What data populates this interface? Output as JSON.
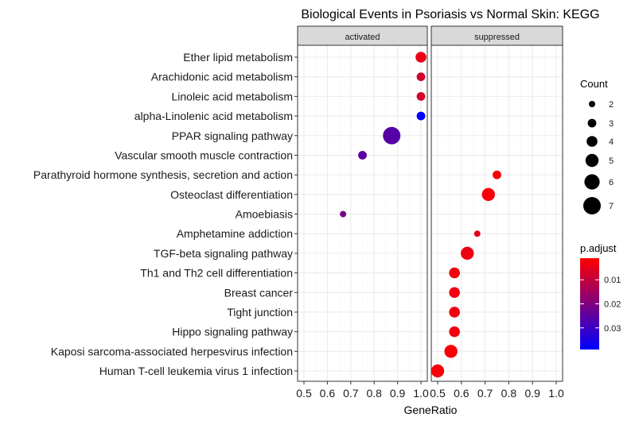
{
  "chart_data": {
    "type": "scatter",
    "title": "Biological Events in Psoriasis vs Normal Skin: KEGG",
    "xlabel": "GeneRatio",
    "ylabel": "",
    "xlim": [
      0.5,
      1.0
    ],
    "xticks": [
      "0.5",
      "0.6",
      "0.7",
      "0.8",
      "0.9",
      "1.0"
    ],
    "grid": true,
    "facets": [
      "activated",
      "suppressed"
    ],
    "categories": [
      "Ether lipid metabolism",
      "Arachidonic acid metabolism",
      "Linoleic acid metabolism",
      "alpha-Linolenic acid metabolism",
      "PPAR signaling pathway",
      "Vascular smooth muscle contraction",
      "Parathyroid hormone synthesis, secretion and action",
      "Osteoclast differentiation",
      "Amoebiasis",
      "Amphetamine addiction",
      "TGF-beta signaling pathway",
      "Th1 and Th2 cell differentiation",
      "Breast cancer",
      "Tight junction",
      "Hippo signaling pathway",
      "Kaposi sarcoma-associated herpesvirus infection",
      "Human T-cell leukemia virus 1 infection"
    ],
    "points": [
      {
        "term": "Ether lipid metabolism",
        "facet": "activated",
        "x": 1.0,
        "count": 4,
        "p_adjust": 0.004
      },
      {
        "term": "Arachidonic acid metabolism",
        "facet": "activated",
        "x": 1.0,
        "count": 3,
        "p_adjust": 0.008
      },
      {
        "term": "Linoleic acid metabolism",
        "facet": "activated",
        "x": 1.0,
        "count": 3,
        "p_adjust": 0.007
      },
      {
        "term": "alpha-Linolenic acid metabolism",
        "facet": "activated",
        "x": 1.0,
        "count": 3,
        "p_adjust": 0.039
      },
      {
        "term": "PPAR signaling pathway",
        "facet": "activated",
        "x": 0.875,
        "count": 7,
        "p_adjust": 0.026
      },
      {
        "term": "Vascular smooth muscle contraction",
        "facet": "activated",
        "x": 0.75,
        "count": 3,
        "p_adjust": 0.025
      },
      {
        "term": "Amoebiasis",
        "facet": "activated",
        "x": 0.667,
        "count": 2,
        "p_adjust": 0.021
      },
      {
        "term": "Parathyroid hormone synthesis, secretion and action",
        "facet": "suppressed",
        "x": 0.75,
        "count": 3,
        "p_adjust": 0.002
      },
      {
        "term": "Osteoclast differentiation",
        "facet": "suppressed",
        "x": 0.714,
        "count": 5,
        "p_adjust": 0.002
      },
      {
        "term": "Amphetamine addiction",
        "facet": "suppressed",
        "x": 0.667,
        "count": 2,
        "p_adjust": 0.005
      },
      {
        "term": "TGF-beta signaling pathway",
        "facet": "suppressed",
        "x": 0.625,
        "count": 5,
        "p_adjust": 0.004
      },
      {
        "term": "Th1 and Th2 cell differentiation",
        "facet": "suppressed",
        "x": 0.571,
        "count": 4,
        "p_adjust": 0.003
      },
      {
        "term": "Breast cancer",
        "facet": "suppressed",
        "x": 0.571,
        "count": 4,
        "p_adjust": 0.003
      },
      {
        "term": "Tight junction",
        "facet": "suppressed",
        "x": 0.571,
        "count": 4,
        "p_adjust": 0.003
      },
      {
        "term": "Hippo signaling pathway",
        "facet": "suppressed",
        "x": 0.571,
        "count": 4,
        "p_adjust": 0.003
      },
      {
        "term": "Kaposi sarcoma-associated herpesvirus infection",
        "facet": "suppressed",
        "x": 0.556,
        "count": 5,
        "p_adjust": 0.002
      },
      {
        "term": "Human T-cell leukemia virus 1 infection",
        "facet": "suppressed",
        "x": 0.5,
        "count": 5,
        "p_adjust": 0.002
      }
    ],
    "legend_count": {
      "title": "Count",
      "values": [
        2,
        3,
        4,
        5,
        6,
        7
      ],
      "labels": [
        "2",
        "3",
        "4",
        "5",
        "6",
        "7"
      ],
      "placement": "right"
    },
    "legend_color": {
      "title": "p.adjust",
      "range": [
        0.001,
        0.039
      ],
      "ticks": [
        0.01,
        0.02,
        0.03
      ],
      "tick_labels": [
        "0.01",
        "0.02",
        "0.03"
      ],
      "low_color": "#ff0000",
      "high_color": "#0000ff",
      "placement": "right"
    },
    "colors": {
      "panel_background": "#ffffff",
      "grid_major": "#ebebeb",
      "grid_minor": "#f5f5f5",
      "panel_border": "#333333",
      "strip_background": "#d9d9d9",
      "point_count": "#000000"
    }
  }
}
